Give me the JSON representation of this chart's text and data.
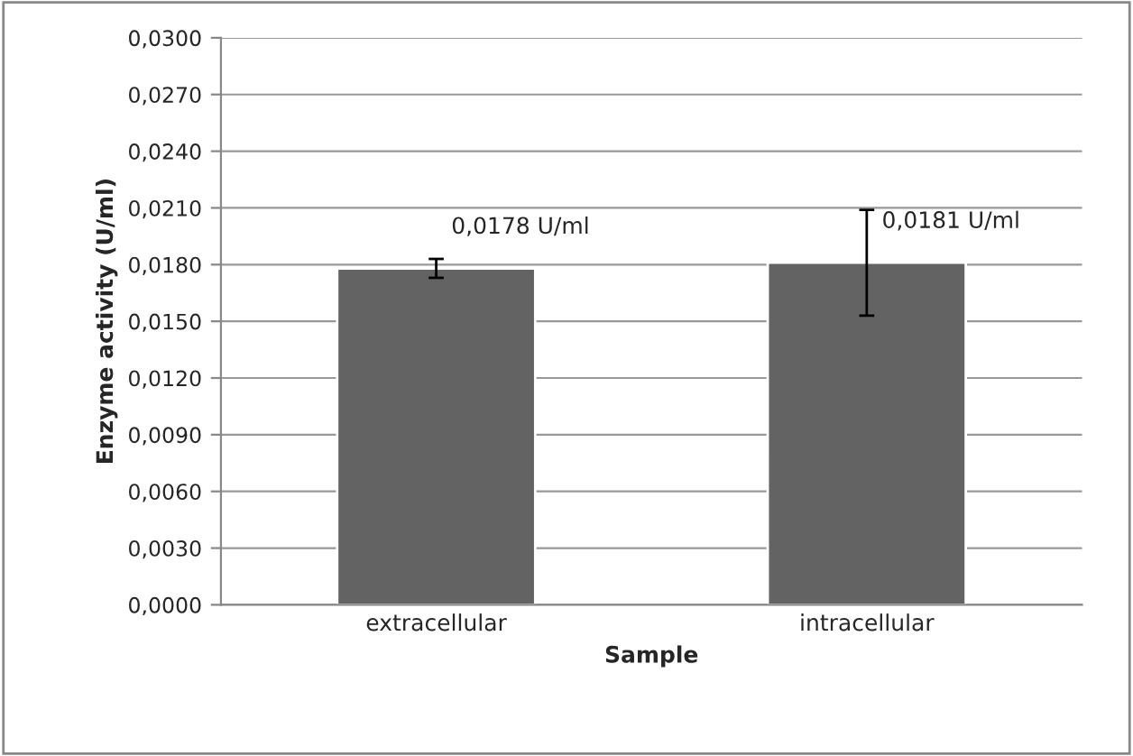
{
  "chart_data": {
    "type": "bar",
    "xlabel": "Sample",
    "ylabel": "Enzyme activity (U/ml)",
    "categories": [
      "extracellular",
      "intracellular"
    ],
    "values": [
      0.0178,
      0.0181
    ],
    "errors": [
      0.0005,
      0.0028
    ],
    "value_labels": [
      "0,0178 U/ml",
      "0,0181 U/ml"
    ],
    "color": "#636363",
    "ylim": [
      0,
      0.03
    ],
    "yticks": [
      {
        "value": 0,
        "label": "0,0000"
      },
      {
        "value": 0.003,
        "label": "0,0030"
      },
      {
        "value": 0.006,
        "label": "0,0060"
      },
      {
        "value": 0.009,
        "label": "0,0090"
      },
      {
        "value": 0.012,
        "label": "0,0120"
      },
      {
        "value": 0.015,
        "label": "0,0150"
      },
      {
        "value": 0.018,
        "label": "0,0180"
      },
      {
        "value": 0.021,
        "label": "0,0210"
      },
      {
        "value": 0.024,
        "label": "0,0240"
      },
      {
        "value": 0.027,
        "label": "0,0270"
      },
      {
        "value": 0.03,
        "label": "0,0300"
      }
    ],
    "grid": "y"
  }
}
